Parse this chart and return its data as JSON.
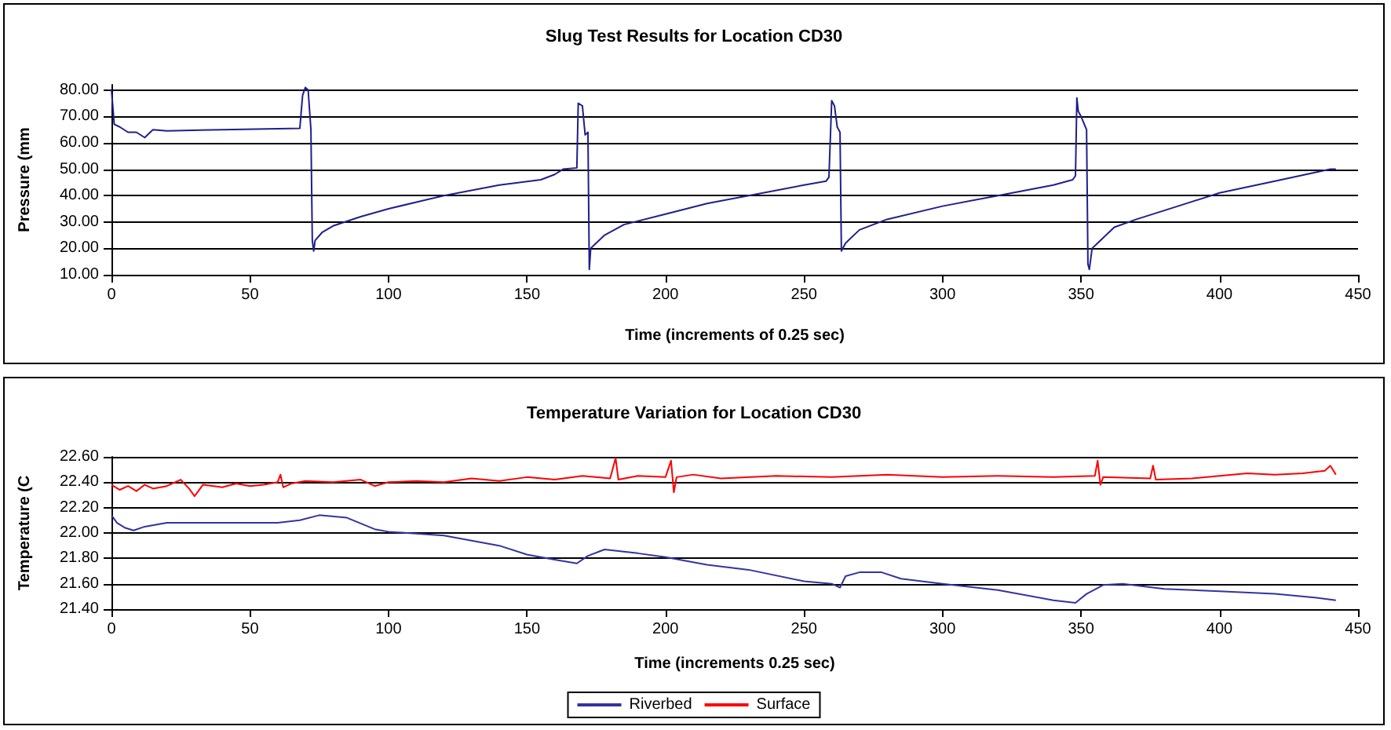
{
  "chart_data": [
    {
      "type": "line",
      "title": "Slug Test Results for Location CD30",
      "xlabel": "Time (increments of 0.25 sec)",
      "ylabel": "Pressure (mm",
      "xlim": [
        0,
        450
      ],
      "xticks": [
        0,
        50,
        100,
        150,
        200,
        250,
        300,
        350,
        400,
        450
      ],
      "ylim": [
        10,
        82
      ],
      "yticks": [
        {
          "value": 10,
          "label": "10.00"
        },
        {
          "value": 20,
          "label": "20.00"
        },
        {
          "value": 30,
          "label": "30.00"
        },
        {
          "value": 40,
          "label": "40.00"
        },
        {
          "value": 50,
          "label": "50.00"
        },
        {
          "value": 60,
          "label": "60.00"
        },
        {
          "value": 70,
          "label": "70.00"
        },
        {
          "value": 80,
          "label": "80.00"
        }
      ],
      "grid": "y",
      "legend": false,
      "marker": "none",
      "line_style": "solid",
      "series": [
        {
          "color": "#1f1f8c",
          "x": [
            0,
            1,
            3,
            6,
            9,
            12,
            14,
            15,
            20,
            40,
            68,
            69,
            70,
            71,
            72,
            72.5,
            73,
            73.5,
            76,
            80,
            90,
            100,
            120,
            140,
            155,
            160,
            163,
            168,
            168.5,
            170,
            171,
            172,
            172.5,
            173,
            174,
            178,
            185,
            200,
            215,
            230,
            250,
            258,
            259,
            260,
            261,
            262,
            263,
            263.5,
            265,
            270,
            280,
            300,
            320,
            340,
            347,
            348,
            348.5,
            349,
            350,
            352,
            352.5,
            353,
            354,
            356,
            362,
            370,
            385,
            400,
            420,
            440,
            442
          ],
          "values": [
            80,
            67,
            66,
            64,
            64,
            62,
            64,
            65,
            64.5,
            65,
            65.5,
            78,
            81,
            80,
            65,
            23,
            19,
            23,
            26,
            28.5,
            32,
            35,
            40,
            44,
            46,
            48,
            50,
            50.5,
            75,
            74,
            63,
            64,
            12,
            20,
            21,
            25,
            29,
            33,
            37,
            40,
            44,
            45.5,
            47,
            76,
            74,
            66,
            64,
            19,
            22,
            27,
            31,
            36,
            40,
            44,
            46,
            47.5,
            77,
            72,
            70,
            65,
            14,
            12,
            20,
            22,
            28,
            31,
            36,
            41,
            45.5,
            50,
            50
          ]
        }
      ]
    },
    {
      "type": "line",
      "title": "Temperature Variation for Location CD30",
      "xlabel": "Time (increments 0.25 sec)",
      "ylabel": "Temperature (C",
      "xlim": [
        0,
        450
      ],
      "xticks": [
        0,
        50,
        100,
        150,
        200,
        250,
        300,
        350,
        400,
        450
      ],
      "ylim": [
        21.4,
        22.6
      ],
      "yticks": [
        {
          "value": 21.4,
          "label": "21.40"
        },
        {
          "value": 21.6,
          "label": "21.60"
        },
        {
          "value": 21.8,
          "label": "21.80"
        },
        {
          "value": 22.0,
          "label": "22.00"
        },
        {
          "value": 22.2,
          "label": "22.20"
        },
        {
          "value": 22.4,
          "label": "22.40"
        },
        {
          "value": 22.6,
          "label": "22.60"
        }
      ],
      "grid": "y",
      "legend": "bottom",
      "marker": "none",
      "line_style": "solid",
      "series": [
        {
          "name": "Riverbed",
          "color": "#3333a0",
          "x": [
            0,
            2,
            5,
            8,
            12,
            20,
            40,
            60,
            68,
            75,
            85,
            95,
            100,
            120,
            140,
            150,
            160,
            168,
            172,
            178,
            190,
            200,
            215,
            230,
            250,
            260,
            263,
            265,
            270,
            278,
            285,
            300,
            320,
            340,
            348,
            352,
            358,
            365,
            380,
            400,
            420,
            435,
            442
          ],
          "values": [
            22.14,
            22.08,
            22.04,
            22.02,
            22.05,
            22.08,
            22.08,
            22.08,
            22.1,
            22.14,
            22.12,
            22.03,
            22.01,
            21.98,
            21.9,
            21.83,
            21.79,
            21.76,
            21.82,
            21.87,
            21.84,
            21.81,
            21.75,
            21.71,
            21.62,
            21.6,
            21.57,
            21.66,
            21.69,
            21.69,
            21.64,
            21.6,
            21.55,
            21.47,
            21.45,
            21.52,
            21.59,
            21.6,
            21.56,
            21.54,
            21.52,
            21.49,
            21.47
          ]
        },
        {
          "name": "Surface",
          "color": "#ff0000",
          "x": [
            0,
            3,
            6,
            9,
            12,
            15,
            20,
            25,
            28,
            30,
            33,
            40,
            45,
            50,
            55,
            60,
            61,
            62,
            65,
            70,
            80,
            90,
            95,
            100,
            110,
            120,
            130,
            140,
            150,
            160,
            170,
            180,
            182,
            183,
            190,
            200,
            202,
            203,
            204,
            210,
            220,
            240,
            260,
            280,
            300,
            320,
            340,
            355,
            356,
            357,
            358,
            375,
            376,
            377,
            390,
            400,
            410,
            420,
            430,
            438,
            440,
            442
          ],
          "values": [
            22.38,
            22.34,
            22.37,
            22.33,
            22.38,
            22.35,
            22.37,
            22.42,
            22.35,
            22.29,
            22.38,
            22.36,
            22.39,
            22.37,
            22.38,
            22.4,
            22.46,
            22.36,
            22.39,
            22.41,
            22.4,
            22.42,
            22.37,
            22.4,
            22.41,
            22.4,
            22.43,
            22.41,
            22.44,
            22.42,
            22.45,
            22.43,
            22.59,
            22.42,
            22.45,
            22.44,
            22.57,
            22.32,
            22.44,
            22.46,
            22.43,
            22.45,
            22.44,
            22.46,
            22.44,
            22.45,
            22.44,
            22.45,
            22.57,
            22.38,
            22.44,
            22.43,
            22.53,
            22.42,
            22.43,
            22.45,
            22.47,
            22.46,
            22.47,
            22.49,
            22.53,
            22.46
          ]
        }
      ]
    }
  ]
}
